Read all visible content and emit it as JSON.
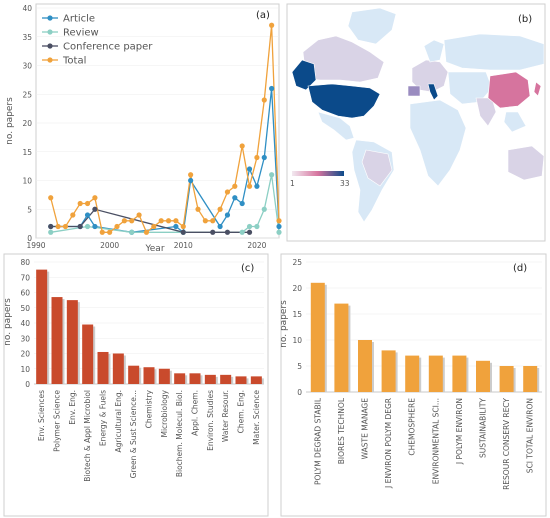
{
  "chart_data": [
    {
      "type": "line",
      "panel_label": "(a)",
      "xlabel": "Year",
      "ylabel": "no. papers",
      "xlim": [
        1990,
        2023
      ],
      "ylim": [
        0,
        40
      ],
      "x_ticks": [
        "1990",
        "2000",
        "2010",
        "2020"
      ],
      "y_ticks": [
        "0",
        "5",
        "10",
        "15",
        "20",
        "25",
        "30",
        "35",
        "40"
      ],
      "legend_position": "top-left",
      "series": [
        {
          "name": "Article",
          "color": "#2f8fc4",
          "points": [
            [
              1992,
              2
            ],
            [
              1996,
              2
            ],
            [
              1997,
              4
            ],
            [
              1998,
              2
            ],
            [
              2003,
              1
            ],
            [
              2009,
              2
            ],
            [
              2010,
              1
            ],
            [
              2011,
              10
            ],
            [
              2015,
              2
            ],
            [
              2016,
              4
            ],
            [
              2017,
              7
            ],
            [
              2018,
              6
            ],
            [
              2019,
              12
            ],
            [
              2020,
              9
            ],
            [
              2021,
              14
            ],
            [
              2022,
              26
            ],
            [
              2023,
              2
            ]
          ]
        },
        {
          "name": "Review",
          "color": "#8ccfc4",
          "points": [
            [
              1992,
              1
            ],
            [
              1997,
              2
            ],
            [
              2003,
              1
            ],
            [
              2010,
              1
            ],
            [
              2018,
              1
            ],
            [
              2019,
              2
            ],
            [
              2020,
              2
            ],
            [
              2021,
              5
            ],
            [
              2022,
              11
            ],
            [
              2023,
              1
            ]
          ]
        },
        {
          "name": "Conference paper",
          "color": "#4a4f63",
          "points": [
            [
              1992,
              2
            ],
            [
              1996,
              2
            ],
            [
              1998,
              5
            ],
            [
              2010,
              1
            ],
            [
              2014,
              1
            ],
            [
              2016,
              1
            ],
            [
              2019,
              1
            ]
          ]
        },
        {
          "name": "Total",
          "color": "#f0a23c",
          "points": [
            [
              1992,
              7
            ],
            [
              1993,
              2
            ],
            [
              1994,
              2
            ],
            [
              1995,
              4
            ],
            [
              1996,
              6
            ],
            [
              1997,
              6
            ],
            [
              1998,
              7
            ],
            [
              1999,
              1
            ],
            [
              2000,
              1
            ],
            [
              2001,
              2
            ],
            [
              2002,
              3
            ],
            [
              2003,
              3
            ],
            [
              2004,
              4
            ],
            [
              2005,
              1
            ],
            [
              2006,
              2
            ],
            [
              2007,
              3
            ],
            [
              2008,
              3
            ],
            [
              2009,
              3
            ],
            [
              2010,
              2
            ],
            [
              2011,
              11
            ],
            [
              2012,
              5
            ],
            [
              2013,
              3
            ],
            [
              2014,
              3
            ],
            [
              2015,
              5
            ],
            [
              2016,
              8
            ],
            [
              2017,
              9
            ],
            [
              2018,
              16
            ],
            [
              2019,
              9
            ],
            [
              2020,
              14
            ],
            [
              2021,
              24
            ],
            [
              2022,
              37
            ],
            [
              2023,
              3
            ]
          ]
        }
      ]
    },
    {
      "type": "map",
      "panel_label": "(b)",
      "scale_min": "1",
      "scale_max": "33",
      "colors": {
        "low": "#d9d3e6",
        "mid": "#d6749e",
        "high": "#0b4a8a",
        "none": "#d8e8f6"
      }
    },
    {
      "type": "bar",
      "panel_label": "(c)",
      "ylabel": "no. papers",
      "ylim": [
        0,
        80
      ],
      "y_ticks": [
        "0",
        "10",
        "20",
        "30",
        "40",
        "50",
        "60",
        "70",
        "80"
      ],
      "color": "#c94a2c",
      "categories": [
        "Env. Sciences",
        "Polymer Science",
        "Env. Eng.",
        "Biotech & Appl Microbiol",
        "Energy & Fuels",
        "Agricultural Eng.",
        "Green & Sust Science...",
        "Chemistry",
        "Microbiology",
        "Biochem. Molecul. Biol.",
        "Appl. Chem.",
        "Environ. Studies",
        "Water Resour.",
        "Chem. Eng.",
        "Mater. Science"
      ],
      "values": [
        75,
        57,
        55,
        39,
        21,
        20,
        12,
        11,
        10,
        7,
        7,
        6,
        6,
        5,
        5
      ]
    },
    {
      "type": "bar",
      "panel_label": "(d)",
      "ylabel": "no. papers",
      "ylim": [
        0,
        25
      ],
      "y_ticks": [
        "0",
        "5",
        "10",
        "15",
        "20",
        "25"
      ],
      "color": "#f0a23c",
      "categories": [
        "POLYM DEGRAD STABIL",
        "BIORES TECHNOL",
        "WASTE MANAGE",
        "J ENVIRON POLYM DEGR",
        "CHEMOSPHERE",
        "ENVIRONMENTAL SCI...",
        "J POLYM ENVIRON",
        "SUSTAINABILITY",
        "RESOUR CONSERV RECY",
        "SCI TOTAL ENVIRON"
      ],
      "values": [
        21,
        17,
        10,
        8,
        7,
        7,
        7,
        6,
        5,
        5
      ]
    }
  ]
}
